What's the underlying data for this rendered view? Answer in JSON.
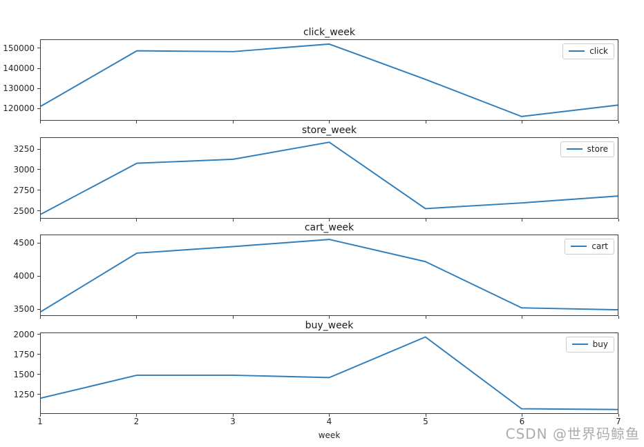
{
  "figure": {
    "xlabel": "week",
    "watermark": "CSDN @世界码鲸鱼",
    "line_color": "#2e7ebd",
    "spine_color": "#3a3a3a",
    "text_color": "#262626"
  },
  "chart_data": [
    {
      "type": "line",
      "title": "click_week",
      "x": [
        1,
        2,
        3,
        4,
        5,
        6,
        7
      ],
      "series": [
        {
          "name": "click",
          "values": [
            120800,
            149000,
            148600,
            152400,
            134500,
            115600,
            121400
          ]
        }
      ],
      "yticks": [
        120000,
        130000,
        140000,
        150000
      ],
      "ylim": [
        113800,
        154480
      ],
      "xlim": [
        1,
        7
      ],
      "grid": false,
      "legend_position": "upper right"
    },
    {
      "type": "line",
      "title": "store_week",
      "x": [
        1,
        2,
        3,
        4,
        5,
        6,
        7
      ],
      "series": [
        {
          "name": "store",
          "values": [
            2450,
            3080,
            3130,
            3340,
            2520,
            2590,
            2675
          ]
        }
      ],
      "yticks": [
        2500,
        2750,
        3000,
        3250
      ],
      "ylim": [
        2404,
        3393
      ],
      "xlim": [
        1,
        7
      ],
      "grid": false,
      "legend_position": "upper right"
    },
    {
      "type": "line",
      "title": "cart_week",
      "x": [
        1,
        2,
        3,
        4,
        5,
        6,
        7
      ],
      "series": [
        {
          "name": "cart",
          "values": [
            3450,
            4350,
            4450,
            4560,
            4220,
            3510,
            3480
          ]
        }
      ],
      "yticks": [
        3500,
        4000,
        4500
      ],
      "ylim": [
        3396,
        4625
      ],
      "xlim": [
        1,
        7
      ],
      "grid": false,
      "legend_position": "upper right"
    },
    {
      "type": "line",
      "title": "buy_week",
      "x": [
        1,
        2,
        3,
        4,
        5,
        6,
        7
      ],
      "series": [
        {
          "name": "buy",
          "values": [
            1200,
            1490,
            1490,
            1460,
            1975,
            1065,
            1055
          ]
        }
      ],
      "yticks": [
        1250,
        1500,
        1750,
        2000
      ],
      "ylim": [
        1009,
        2023
      ],
      "xlim": [
        1,
        7
      ],
      "xlabel": "week",
      "grid": false,
      "legend_position": "upper right"
    }
  ]
}
